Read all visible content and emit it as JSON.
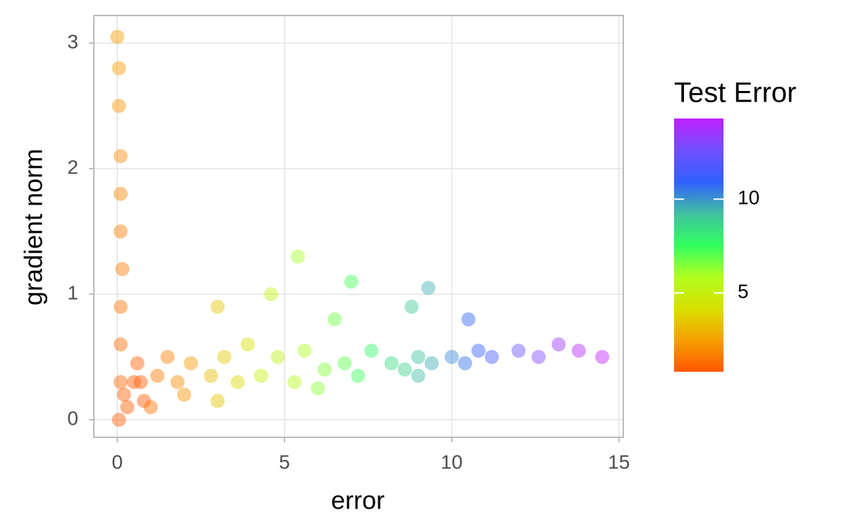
{
  "chart_data": {
    "type": "scatter",
    "x_label": "error",
    "y_label": "gradient norm",
    "xlim": [
      -0.7,
      15.13
    ],
    "ylim": [
      -0.14,
      3.22
    ],
    "xticks": [
      0,
      5,
      10,
      15
    ],
    "yticks": [
      0,
      1,
      2,
      3
    ],
    "grid": true,
    "series": [
      {
        "x": [
          0.05,
          0.1,
          0.1,
          0.1,
          0.15,
          0.1,
          0.1,
          0.1,
          0.05,
          0.05,
          0.0,
          0.2,
          0.3,
          0.5,
          0.7,
          0.8,
          0.6,
          1.2,
          1.5,
          1.8,
          2.2,
          2.0,
          1.0,
          2.8,
          3.2,
          3.6,
          3.9,
          3.0,
          4.3,
          4.8,
          5.3,
          5.6,
          4.6,
          5.4,
          6.2,
          6.8,
          7.2,
          7.6,
          6.5,
          7.0,
          8.2,
          8.6,
          9.0,
          9.4,
          8.8,
          9.3,
          10.0,
          10.4,
          10.8,
          11.2,
          10.5,
          12.0,
          12.6,
          13.2,
          13.8,
          14.5,
          3.0,
          6.0,
          9.0
        ],
        "y": [
          0.0,
          0.3,
          0.6,
          0.9,
          1.2,
          1.5,
          1.8,
          2.1,
          2.5,
          2.8,
          3.05,
          0.2,
          0.1,
          0.3,
          0.3,
          0.15,
          0.45,
          0.35,
          0.5,
          0.3,
          0.45,
          0.2,
          0.1,
          0.35,
          0.5,
          0.3,
          0.6,
          0.9,
          0.35,
          0.5,
          0.3,
          0.55,
          1.0,
          1.3,
          0.4,
          0.45,
          0.35,
          0.55,
          0.8,
          1.1,
          0.45,
          0.4,
          0.5,
          0.45,
          0.9,
          1.05,
          0.5,
          0.45,
          0.55,
          0.5,
          0.8,
          0.55,
          0.5,
          0.6,
          0.55,
          0.5,
          0.15,
          0.25,
          0.35
        ],
        "c": [
          1.0,
          1.2,
          1.3,
          1.5,
          1.6,
          1.7,
          1.9,
          2.0,
          2.2,
          2.3,
          2.5,
          1.0,
          0.9,
          0.9,
          0.9,
          0.9,
          1.0,
          1.6,
          1.8,
          2.0,
          2.3,
          2.2,
          1.5,
          3.2,
          3.6,
          4.0,
          4.3,
          3.5,
          5.0,
          5.3,
          5.6,
          5.9,
          5.2,
          6.0,
          6.5,
          7.0,
          7.4,
          7.8,
          6.8,
          7.3,
          8.5,
          8.8,
          9.2,
          9.6,
          9.0,
          9.5,
          10.2,
          10.6,
          11.0,
          11.5,
          10.8,
          12.4,
          13.0,
          13.5,
          14.0,
          14.3,
          3.4,
          6.4,
          9.3
        ]
      }
    ],
    "colorbar": {
      "title": "Test Error",
      "lim": [
        0.8,
        14.3
      ],
      "ticks": [
        5,
        10
      ],
      "colors": [
        "#ff5500",
        "#f5a000",
        "#d8e000",
        "#b0ff20",
        "#30ff60",
        "#40c0a0",
        "#3060ff",
        "#7050ff",
        "#c020ff"
      ]
    }
  }
}
